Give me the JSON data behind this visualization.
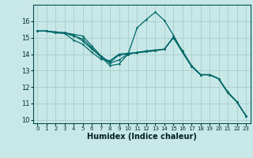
{
  "xlabel": "Humidex (Indice chaleur)",
  "bg_color": "#c8e8e8",
  "grid_color": "#a8cccc",
  "line_color": "#006868",
  "xlim": [
    -0.5,
    23.5
  ],
  "ylim": [
    9.8,
    17.0
  ],
  "xticks": [
    0,
    1,
    2,
    3,
    4,
    5,
    6,
    7,
    8,
    9,
    10,
    11,
    12,
    13,
    14,
    15,
    16,
    17,
    18,
    19,
    20,
    21,
    22,
    23
  ],
  "yticks": [
    10,
    11,
    12,
    13,
    14,
    15,
    16
  ],
  "line1_y": [
    15.4,
    15.4,
    15.35,
    15.3,
    15.2,
    15.1,
    14.5,
    13.9,
    13.5,
    13.95,
    14.0,
    14.1,
    14.15,
    14.2,
    14.3,
    15.0,
    14.2,
    13.3,
    12.75,
    12.75,
    12.5,
    11.7,
    11.1,
    10.25
  ],
  "line2_y": [
    15.4,
    15.4,
    15.3,
    15.3,
    15.15,
    14.8,
    14.3,
    13.85,
    13.3,
    13.4,
    14.0,
    15.6,
    16.1,
    16.55,
    16.05,
    15.15,
    14.15,
    13.25,
    12.75,
    12.75,
    12.5,
    11.65,
    11.1,
    10.25
  ],
  "line3_y": [
    15.4,
    15.4,
    15.3,
    15.25,
    14.85,
    14.6,
    14.1,
    13.7,
    13.6,
    14.0,
    14.05,
    14.1,
    14.2,
    14.25,
    14.3,
    15.0,
    14.1,
    13.25,
    12.75,
    12.75,
    12.5,
    11.65,
    11.1,
    10.25
  ],
  "line4_y": [
    15.4,
    15.4,
    15.32,
    15.28,
    15.1,
    14.92,
    14.38,
    13.82,
    13.45,
    13.65,
    14.0,
    14.08,
    14.15,
    14.22,
    14.3,
    15.05,
    14.18,
    13.28,
    12.75,
    12.75,
    12.5,
    11.67,
    11.1,
    10.25
  ]
}
